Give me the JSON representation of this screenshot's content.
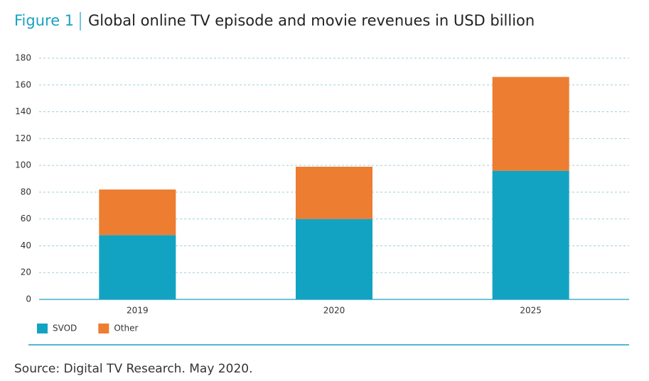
{
  "chart_data": {
    "type": "bar",
    "stacked": true,
    "title_prefix": "Figure 1",
    "title": "Global online TV episode and movie revenues in USD billion",
    "source": "Source: Digital TV Research. May 2020.",
    "categories": [
      "2019",
      "2020",
      "2025"
    ],
    "series": [
      {
        "name": "SVOD",
        "color": "#12a3c2",
        "values": [
          48,
          60,
          96
        ]
      },
      {
        "name": "Other",
        "color": "#ed7d31",
        "values": [
          34,
          39,
          70
        ]
      }
    ],
    "ylim": [
      0,
      180
    ],
    "yticks": [
      0,
      20,
      40,
      60,
      80,
      100,
      120,
      140,
      160,
      180
    ],
    "grid": true,
    "legend": "bottom-left"
  }
}
